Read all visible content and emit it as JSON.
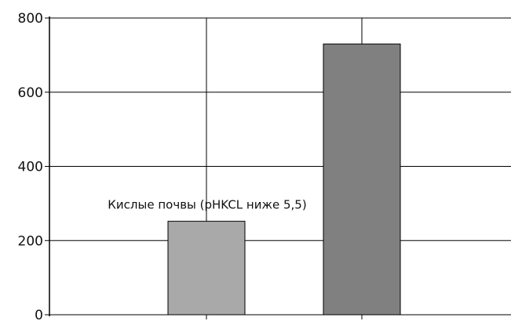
{
  "chart_data": {
    "type": "bar",
    "categories": [
      "",
      ""
    ],
    "values": [
      252,
      730
    ],
    "colors": [
      "#a9a9a9",
      "#808080"
    ],
    "ylim": [
      0,
      800
    ],
    "yticks": [
      0,
      200,
      400,
      600,
      800
    ],
    "ytick_labels": [
      "0",
      "200",
      "400",
      "600",
      "800"
    ],
    "grid": true,
    "annotations": [
      {
        "text": "Кислые почвы (pHKCL ниже 5,5)",
        "bar_index": 0
      }
    ],
    "xlabel": "",
    "ylabel": "",
    "title": ""
  }
}
